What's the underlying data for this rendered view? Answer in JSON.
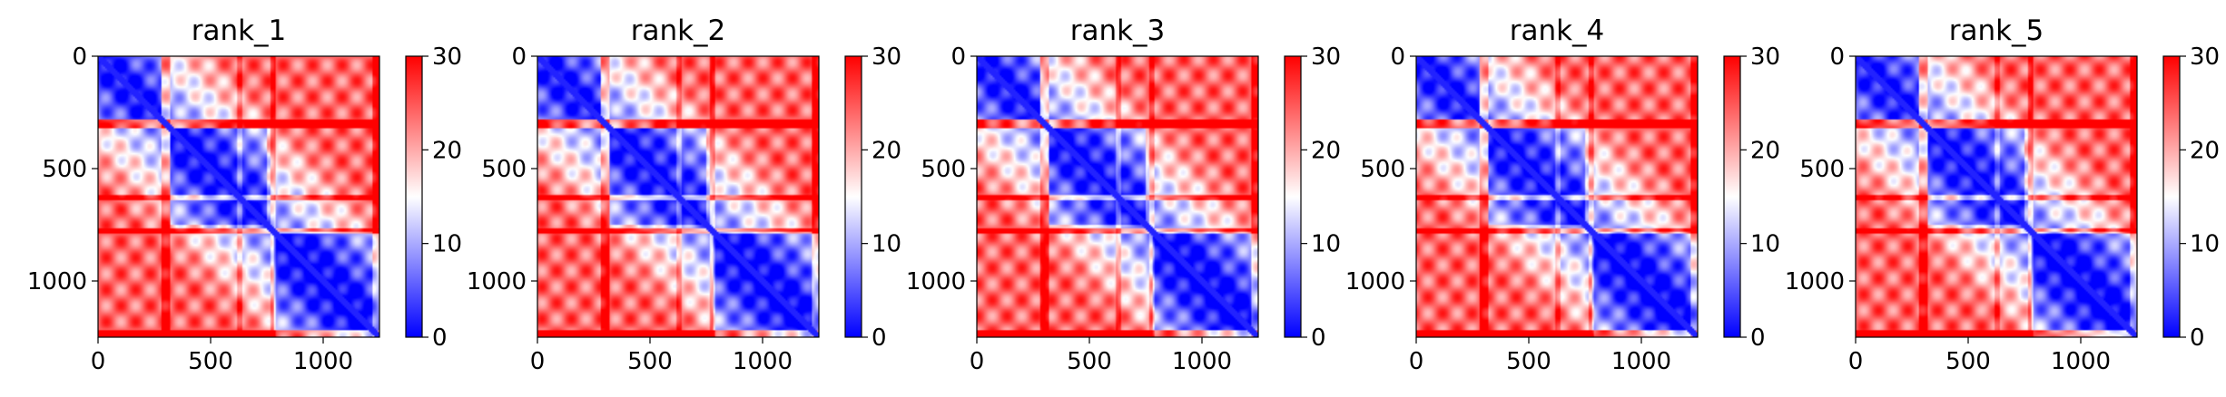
{
  "chart_data": [
    {
      "type": "heatmap",
      "title": "rank_1",
      "xlim": [
        0,
        1250
      ],
      "ylim": [
        1250,
        0
      ],
      "xticks": [
        "0",
        "500",
        "1000"
      ],
      "yticks": [
        "0",
        "500",
        "1000"
      ],
      "colorbar": {
        "min": 0,
        "max": 30,
        "ticks": [
          "0",
          "10",
          "20",
          "30"
        ],
        "colormap": "bwr"
      }
    },
    {
      "type": "heatmap",
      "title": "rank_2",
      "xlim": [
        0,
        1250
      ],
      "ylim": [
        1250,
        0
      ],
      "xticks": [
        "0",
        "500",
        "1000"
      ],
      "yticks": [
        "0",
        "500",
        "1000"
      ],
      "colorbar": {
        "min": 0,
        "max": 30,
        "ticks": [
          "0",
          "10",
          "20",
          "30"
        ],
        "colormap": "bwr"
      }
    },
    {
      "type": "heatmap",
      "title": "rank_3",
      "xlim": [
        0,
        1250
      ],
      "ylim": [
        1250,
        0
      ],
      "xticks": [
        "0",
        "500",
        "1000"
      ],
      "yticks": [
        "0",
        "500",
        "1000"
      ],
      "colorbar": {
        "min": 0,
        "max": 30,
        "ticks": [
          "0",
          "10",
          "20",
          "30"
        ],
        "colormap": "bwr"
      }
    },
    {
      "type": "heatmap",
      "title": "rank_4",
      "xlim": [
        0,
        1250
      ],
      "ylim": [
        1250,
        0
      ],
      "xticks": [
        "0",
        "500",
        "1000"
      ],
      "yticks": [
        "0",
        "500",
        "1000"
      ],
      "colorbar": {
        "min": 0,
        "max": 30,
        "ticks": [
          "0",
          "10",
          "20",
          "30"
        ],
        "colormap": "bwr"
      }
    },
    {
      "type": "heatmap",
      "title": "rank_5",
      "xlim": [
        0,
        1250
      ],
      "ylim": [
        1250,
        0
      ],
      "xticks": [
        "0",
        "500",
        "1000"
      ],
      "yticks": [
        "0",
        "500",
        "1000"
      ],
      "colorbar": {
        "min": 0,
        "max": 30,
        "ticks": [
          "0",
          "10",
          "20",
          "30"
        ],
        "colormap": "bwr"
      }
    }
  ],
  "colors": {
    "low": "#0000ff",
    "mid": "#ffffff",
    "high": "#ff0000"
  }
}
